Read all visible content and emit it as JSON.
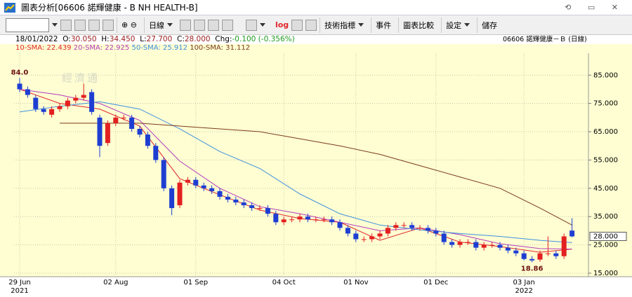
{
  "window": {
    "title": "圖表分析[06606 諾輝健康 - B  NH HEALTH-B]"
  },
  "toolbar": {
    "period": "日線",
    "log": "log",
    "buttons": [
      "技術指標",
      "事件",
      "圖表比較",
      "設定",
      "儲存"
    ]
  },
  "quote": {
    "date": "18/01/2022",
    "fields": [
      {
        "label": "O:",
        "value": "30.050"
      },
      {
        "label": "H:",
        "value": "34.450"
      },
      {
        "label": "L:",
        "value": "27.700"
      },
      {
        "label": "C:",
        "value": "28.000"
      },
      {
        "label": "Chg:",
        "value": "-0.100 (-0.356%)"
      }
    ],
    "instrument": "06606 諾輝健康－Ｂ (日線)"
  },
  "chart_data": {
    "type": "candlestick",
    "watermark": "經濟通",
    "categories": [
      "29 Jun",
      null,
      null,
      null,
      null,
      null,
      null,
      null,
      null,
      null,
      null,
      null,
      "02 Aug",
      null,
      null,
      null,
      null,
      null,
      null,
      null,
      null,
      null,
      "01 Sep",
      null,
      null,
      null,
      null,
      null,
      null,
      null,
      null,
      null,
      null,
      "04 Oct",
      null,
      null,
      null,
      null,
      null,
      null,
      null,
      null,
      "01 Nov",
      null,
      null,
      null,
      null,
      null,
      null,
      null,
      null,
      null,
      "01 Dec",
      null,
      null,
      null,
      null,
      null,
      null,
      null,
      null,
      null,
      null,
      "03 Jan",
      null,
      null,
      null,
      null,
      null,
      null
    ],
    "x_years": [
      {
        "category": 0,
        "label": "2021"
      },
      {
        "category": 63,
        "label": "2022"
      }
    ],
    "open": [
      82,
      80,
      77,
      73,
      71,
      73,
      74,
      76,
      77,
      79,
      70,
      61,
      68,
      70,
      70,
      66,
      64,
      60,
      55,
      45,
      39,
      47,
      48,
      46,
      45,
      44,
      42,
      41,
      40,
      39,
      38,
      38,
      36,
      33,
      34,
      34,
      35,
      34,
      34,
      34,
      33,
      31,
      29,
      27,
      27,
      28,
      29,
      31,
      32,
      32,
      31,
      31,
      30,
      29,
      26,
      25,
      26,
      26,
      24,
      25,
      25,
      24,
      23,
      22,
      20,
      19.8,
      22,
      22,
      21,
      30.05
    ],
    "high": [
      84,
      81,
      78,
      74,
      74,
      75,
      77,
      78,
      82,
      80,
      71,
      69,
      71,
      71,
      71,
      67,
      65,
      61,
      56,
      46,
      48,
      49,
      49,
      47,
      46,
      45,
      43,
      42,
      41,
      40,
      39,
      39,
      37,
      35,
      35,
      36,
      36,
      35,
      35,
      35,
      34,
      32,
      30,
      28,
      29,
      30,
      32,
      33,
      33,
      33,
      32,
      32,
      31,
      30,
      27,
      27,
      27,
      27,
      26,
      26,
      26,
      25,
      24,
      23,
      21,
      23,
      28,
      23,
      29,
      34.45
    ],
    "low": [
      79,
      77,
      72,
      71,
      70,
      72,
      73,
      75,
      76,
      71,
      56,
      60,
      67,
      69,
      65,
      63,
      59,
      54,
      44,
      35.5,
      38,
      46,
      45,
      44,
      43,
      41,
      40,
      39,
      38,
      37,
      37,
      35,
      32,
      32,
      33,
      33,
      33,
      33,
      33,
      32,
      30,
      28,
      26,
      26,
      26,
      27,
      28,
      30,
      31,
      30,
      30,
      29,
      28,
      25,
      24,
      24,
      25,
      23,
      23,
      24,
      23,
      22,
      21,
      19.5,
      18.86,
      19,
      21,
      20,
      20,
      27.7
    ],
    "close": [
      80,
      78,
      73,
      72,
      73,
      74,
      76,
      77,
      78,
      72,
      60,
      68,
      70,
      70,
      66,
      64,
      60,
      55,
      45,
      38,
      47,
      48,
      46,
      45,
      44,
      42,
      41,
      40,
      39,
      38,
      38,
      36,
      33,
      34,
      34,
      35,
      34,
      34,
      34,
      33,
      31,
      29,
      27,
      27,
      28,
      29,
      31,
      32,
      32,
      31,
      31,
      30,
      29,
      26,
      25,
      26,
      26,
      24,
      25,
      25,
      24,
      23,
      22,
      20,
      19.5,
      22,
      22,
      21,
      28,
      28
    ],
    "up_color": "#e32020",
    "down_color": "#1e3ed2",
    "moving_averages": [
      {
        "name": "10-SMA",
        "last": 22.439,
        "color": "#e2262c",
        "x": [
          0,
          5,
          10,
          15,
          20,
          25,
          30,
          35,
          40,
          45,
          50,
          55,
          60,
          65,
          69
        ],
        "values": [
          80,
          75,
          73,
          67,
          48.4,
          42.7,
          37.3,
          34.3,
          33,
          26.6,
          31,
          26,
          24.4,
          22.4,
          23.5
        ]
      },
      {
        "name": "20-SMA",
        "last": 22.925,
        "color": "#b43cc0",
        "x": [
          0,
          5,
          10,
          15,
          20,
          25,
          30,
          35,
          40,
          45,
          50,
          55,
          60,
          65,
          69
        ],
        "values": [
          80,
          78,
          75,
          69,
          54.6,
          45,
          38.5,
          36,
          33,
          30,
          31,
          28.6,
          25.4,
          23.7,
          23.5
        ]
      },
      {
        "name": "50-SMA",
        "last": 25.912,
        "color": "#3d8fe0",
        "x": [
          0,
          5,
          10,
          15,
          20,
          25,
          30,
          35,
          40,
          45,
          50,
          55,
          60,
          65,
          69
        ],
        "values": [
          72,
          74,
          75.6,
          73,
          66,
          58,
          52,
          43,
          36,
          32,
          30.3,
          29,
          28,
          26.6,
          25.8
        ]
      },
      {
        "name": "100-SMA",
        "last": 31.112,
        "color": "#7b3b1c",
        "x": [
          0,
          5,
          10,
          15,
          20,
          25,
          30,
          35,
          40,
          45,
          50,
          55,
          60,
          65,
          69
        ],
        "values": [
          null,
          68,
          68,
          68,
          67,
          66,
          65,
          62.5,
          60,
          57,
          53,
          49,
          45,
          38,
          32
        ]
      }
    ],
    "annotations": [
      {
        "value": 84,
        "label": "84.0",
        "category": 0
      },
      {
        "value": 18.86,
        "label": "18.86",
        "category": 64
      }
    ],
    "last_price": {
      "value": 28,
      "label": "28.000"
    },
    "ylim": [
      14,
      92
    ],
    "yticks": [
      {
        "value": 15,
        "label": "15.000"
      },
      {
        "value": 25,
        "label": "25.000"
      },
      {
        "value": 35,
        "label": "35.000"
      },
      {
        "value": 45,
        "label": "45.000"
      },
      {
        "value": 55,
        "label": "55.000"
      },
      {
        "value": 65,
        "label": "65.000"
      },
      {
        "value": 75,
        "label": "75.000"
      },
      {
        "value": 85,
        "label": "85.000"
      }
    ],
    "grid": true
  }
}
